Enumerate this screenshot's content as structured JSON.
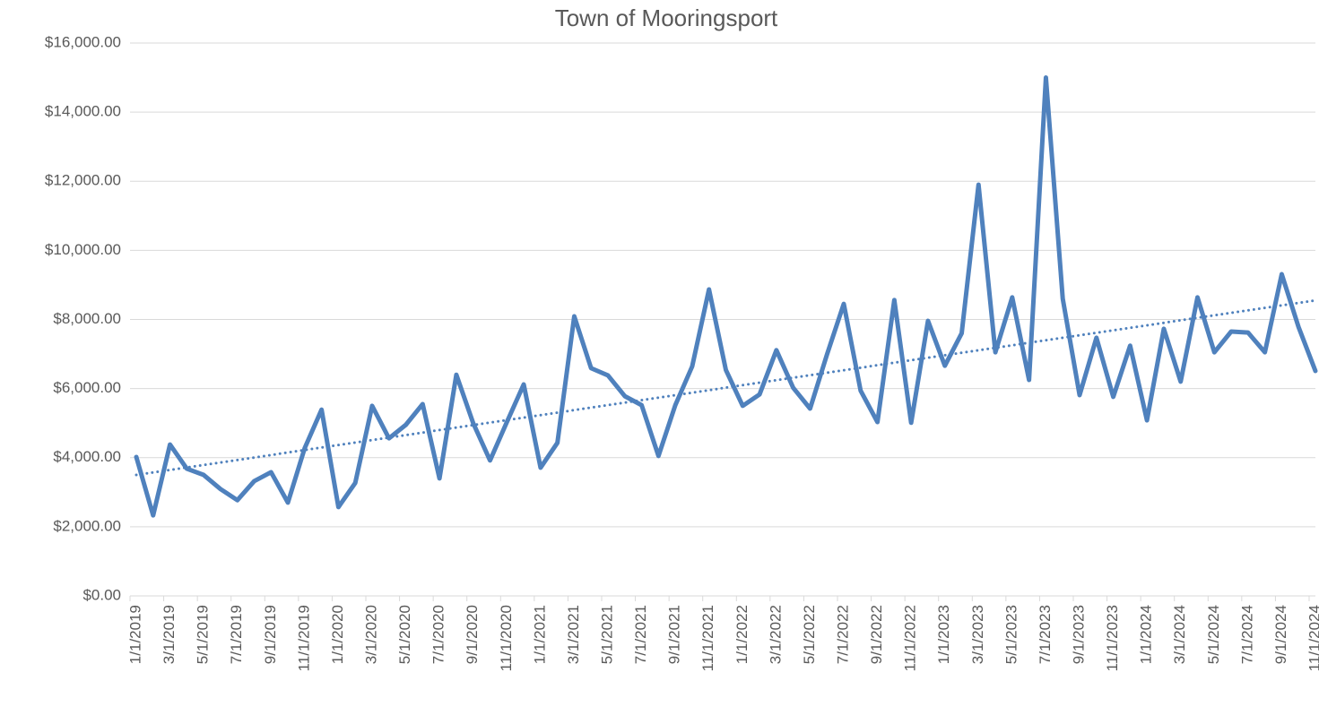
{
  "chart_data": {
    "type": "line",
    "title": "Town of Mooringsport",
    "categories": [
      "1/1/2019",
      null,
      "3/1/2019",
      null,
      "5/1/2019",
      null,
      "7/1/2019",
      null,
      "9/1/2019",
      null,
      "11/1/2019",
      null,
      "1/1/2020",
      null,
      "3/1/2020",
      null,
      "5/1/2020",
      null,
      "7/1/2020",
      null,
      "9/1/2020",
      null,
      "11/1/2020",
      null,
      "1/1/2021",
      null,
      "3/1/2021",
      null,
      "5/1/2021",
      null,
      "7/1/2021",
      null,
      "9/1/2021",
      null,
      "11/1/2021",
      null,
      "1/1/2022",
      null,
      "3/1/2022",
      null,
      "5/1/2022",
      null,
      "7/1/2022",
      null,
      "9/1/2022",
      null,
      "11/1/2022",
      null,
      "1/1/2023",
      null,
      "3/1/2023",
      null,
      "5/1/2023",
      null,
      "7/1/2023",
      null,
      "9/1/2023",
      null,
      "11/1/2023",
      null,
      "1/1/2024",
      null,
      "3/1/2024",
      null,
      "5/1/2024",
      null,
      "7/1/2024",
      null,
      "9/1/2024",
      null,
      "11/1/2024"
    ],
    "series": [
      {
        "color": "#4f81bd",
        "values": [
          4020,
          2330,
          4380,
          3680,
          3500,
          3090,
          2770,
          3320,
          3580,
          2700,
          4280,
          5390,
          2570,
          3270,
          5500,
          4560,
          4950,
          5550,
          3400,
          6400,
          5000,
          3920,
          5030,
          6120,
          3710,
          4430,
          8090,
          6590,
          6380,
          5780,
          5520,
          4050,
          5520,
          6640,
          8870,
          6540,
          5500,
          5830,
          7110,
          6020,
          5420,
          6980,
          8450,
          5940,
          5030,
          8560,
          5010,
          7960,
          6660,
          7600,
          11900,
          7050,
          8640,
          6250,
          15000,
          8600,
          5810,
          7470,
          5760,
          7240,
          5080,
          7730,
          6200,
          8640,
          7050,
          7650,
          7620,
          7050,
          9310,
          7780,
          6510
        ]
      }
    ],
    "trendline": {
      "type": "linear",
      "style": "dotted"
    },
    "ylim": [
      0,
      16000
    ],
    "yticks": [
      {
        "value": 0,
        "label": "$0.00"
      },
      {
        "value": 2000,
        "label": "$2,000.00"
      },
      {
        "value": 4000,
        "label": "$4,000.00"
      },
      {
        "value": 6000,
        "label": "$6,000.00"
      },
      {
        "value": 8000,
        "label": "$8,000.00"
      },
      {
        "value": 10000,
        "label": "$10,000.00"
      },
      {
        "value": 12000,
        "label": "$12,000.00"
      },
      {
        "value": 14000,
        "label": "$14,000.00"
      },
      {
        "value": 16000,
        "label": "$16,000.00"
      }
    ],
    "grid": true
  }
}
